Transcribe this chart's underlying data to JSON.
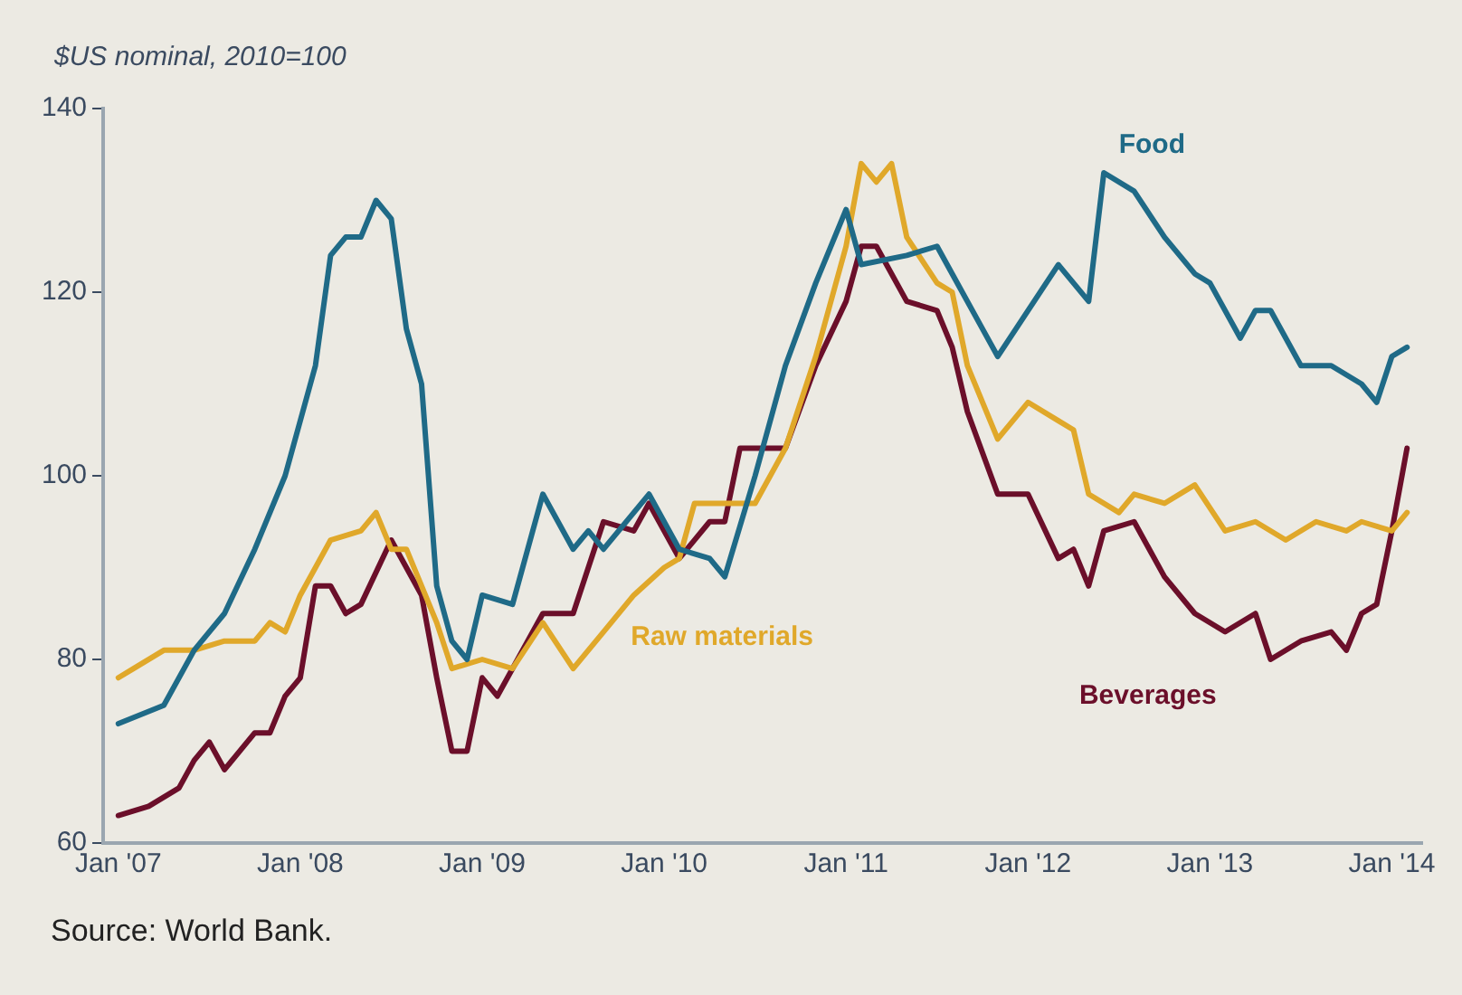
{
  "chart_data": {
    "type": "line",
    "ylabel": "$US nominal, 2010=100",
    "xlim": [
      "2006-12",
      "2014-03"
    ],
    "xticks": [
      {
        "value": "2007-01",
        "label": "Jan '07"
      },
      {
        "value": "2008-01",
        "label": "Jan '08"
      },
      {
        "value": "2009-01",
        "label": "Jan '09"
      },
      {
        "value": "2010-01",
        "label": "Jan '10"
      },
      {
        "value": "2011-01",
        "label": "Jan '11"
      },
      {
        "value": "2012-01",
        "label": "Jan '12"
      },
      {
        "value": "2013-01",
        "label": "Jan '13"
      },
      {
        "value": "2014-01",
        "label": "Jan '14"
      }
    ],
    "ylim": [
      60,
      140
    ],
    "yticks": [
      60,
      80,
      100,
      120,
      140
    ],
    "grid": false,
    "legend": false,
    "marker": "none",
    "line_style": "solid",
    "series": [
      {
        "name": "Food",
        "color": "#1f6a87",
        "x": [
          "2007-01",
          "2007-04",
          "2007-06",
          "2007-08",
          "2007-10",
          "2007-12",
          "2008-02",
          "2008-03",
          "2008-04",
          "2008-05",
          "2008-06",
          "2008-07",
          "2008-08",
          "2008-09",
          "2008-10",
          "2008-11",
          "2008-12",
          "2009-01",
          "2009-03",
          "2009-05",
          "2009-07",
          "2009-08",
          "2009-09",
          "2009-11",
          "2009-12",
          "2010-02",
          "2010-04",
          "2010-05",
          "2010-07",
          "2010-09",
          "2010-11",
          "2011-01",
          "2011-02",
          "2011-05",
          "2011-07",
          "2011-08",
          "2011-10",
          "2011-11",
          "2012-01",
          "2012-03",
          "2012-05",
          "2012-06",
          "2012-08",
          "2012-10",
          "2012-12",
          "2013-01",
          "2013-03",
          "2013-04",
          "2013-05",
          "2013-07",
          "2013-09",
          "2013-11",
          "2013-12",
          "2014-01",
          "2014-02"
        ],
        "values": [
          73,
          75,
          81,
          85,
          92,
          100,
          112,
          124,
          126,
          126,
          130,
          128,
          116,
          110,
          88,
          82,
          80,
          87,
          86,
          98,
          92,
          94,
          92,
          96,
          98,
          92,
          91,
          89,
          100,
          112,
          121,
          129,
          123,
          124,
          125,
          122,
          116,
          113,
          118,
          123,
          119,
          133,
          131,
          126,
          122,
          121,
          115,
          118,
          118,
          112,
          112,
          110,
          108,
          113,
          114
        ]
      },
      {
        "name": "Raw materials",
        "color": "#e0a82a",
        "x": [
          "2007-01",
          "2007-02",
          "2007-04",
          "2007-06",
          "2007-08",
          "2007-10",
          "2007-11",
          "2007-12",
          "2008-01",
          "2008-03",
          "2008-05",
          "2008-06",
          "2008-07",
          "2008-08",
          "2008-10",
          "2008-11",
          "2009-01",
          "2009-03",
          "2009-05",
          "2009-07",
          "2009-09",
          "2009-11",
          "2010-01",
          "2010-02",
          "2010-03",
          "2010-05",
          "2010-07",
          "2010-09",
          "2010-11",
          "2011-01",
          "2011-02",
          "2011-03",
          "2011-04",
          "2011-05",
          "2011-07",
          "2011-08",
          "2011-09",
          "2011-11",
          "2012-01",
          "2012-03",
          "2012-04",
          "2012-05",
          "2012-07",
          "2012-08",
          "2012-10",
          "2012-12",
          "2013-02",
          "2013-04",
          "2013-06",
          "2013-08",
          "2013-10",
          "2013-11",
          "2014-01",
          "2014-02"
        ],
        "values": [
          78,
          79,
          81,
          81,
          82,
          82,
          84,
          83,
          87,
          93,
          94,
          96,
          92,
          92,
          84,
          79,
          80,
          79,
          84,
          79,
          83,
          87,
          90,
          91,
          97,
          97,
          97,
          103,
          113,
          125,
          134,
          132,
          134,
          126,
          121,
          120,
          112,
          104,
          108,
          106,
          105,
          98,
          96,
          98,
          97,
          99,
          94,
          95,
          93,
          95,
          94,
          95,
          94,
          96
        ]
      },
      {
        "name": "Beverages",
        "color": "#6b0f2a",
        "x": [
          "2007-01",
          "2007-03",
          "2007-05",
          "2007-06",
          "2007-07",
          "2007-08",
          "2007-10",
          "2007-11",
          "2007-12",
          "2008-01",
          "2008-02",
          "2008-03",
          "2008-04",
          "2008-05",
          "2008-07",
          "2008-08",
          "2008-09",
          "2008-10",
          "2008-11",
          "2008-12",
          "2009-01",
          "2009-02",
          "2009-05",
          "2009-07",
          "2009-09",
          "2009-11",
          "2009-12",
          "2010-02",
          "2010-04",
          "2010-05",
          "2010-06",
          "2010-09",
          "2010-11",
          "2011-01",
          "2011-02",
          "2011-03",
          "2011-05",
          "2011-07",
          "2011-08",
          "2011-09",
          "2011-11",
          "2012-01",
          "2012-03",
          "2012-04",
          "2012-05",
          "2012-06",
          "2012-08",
          "2012-10",
          "2012-12",
          "2013-02",
          "2013-04",
          "2013-05",
          "2013-07",
          "2013-09",
          "2013-10",
          "2013-11",
          "2013-12",
          "2014-01",
          "2014-02"
        ],
        "values": [
          63,
          64,
          66,
          69,
          71,
          68,
          72,
          72,
          76,
          78,
          88,
          88,
          85,
          86,
          93,
          90,
          87,
          78,
          70,
          70,
          78,
          76,
          85,
          85,
          95,
          94,
          97,
          91,
          95,
          95,
          103,
          103,
          112,
          119,
          125,
          125,
          119,
          118,
          114,
          107,
          98,
          98,
          91,
          92,
          88,
          94,
          95,
          89,
          85,
          83,
          85,
          80,
          82,
          83,
          81,
          85,
          86,
          94,
          103
        ]
      }
    ],
    "annotations": [
      "Source: World Bank."
    ]
  }
}
